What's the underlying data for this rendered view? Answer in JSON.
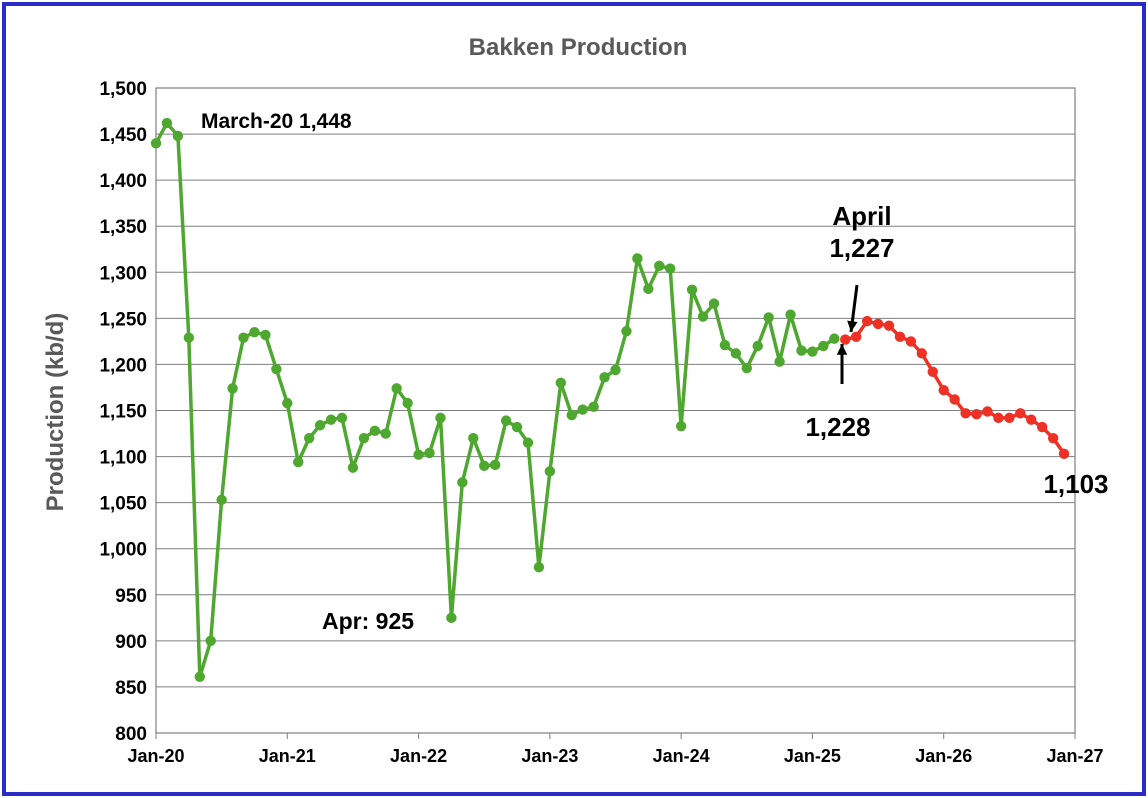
{
  "chart_data": {
    "type": "line",
    "title": "Bakken Production",
    "xlabel": "",
    "ylabel": "Production (kb/d)",
    "ylim": [
      800,
      1500
    ],
    "y_ticks": [
      "800",
      "850",
      "900",
      "950",
      "1,000",
      "1,050",
      "1,100",
      "1,150",
      "1,200",
      "1,250",
      "1,300",
      "1,350",
      "1,400",
      "1,450",
      "1,500"
    ],
    "x_ticks": [
      "Jan-20",
      "Jan-21",
      "Jan-22",
      "Jan-23",
      "Jan-24",
      "Jan-25",
      "Jan-26",
      "Jan-27"
    ],
    "grid": true,
    "colors": {
      "actual": "#4ea72e",
      "forecast": "#ee3124",
      "frame": "#2b2bc8"
    },
    "series": [
      {
        "start": "2020-01",
        "values": [
          1440,
          1462,
          1448,
          1229,
          861,
          900,
          1053,
          1174,
          1229,
          1235,
          1232,
          1195,
          1158,
          1094,
          1120,
          1134,
          1140,
          1142,
          1088,
          1120,
          1128,
          1125,
          1174,
          1158,
          1102,
          1104,
          1142,
          925,
          1072,
          1120,
          1090,
          1091,
          1139,
          1132,
          1115,
          980,
          1084,
          1180,
          1145,
          1151,
          1154,
          1186,
          1194,
          1236,
          1315,
          1282,
          1307,
          1304,
          1133,
          1281,
          1252,
          1266,
          1221,
          1212,
          1196,
          1220,
          1251,
          1203,
          1254,
          1215,
          1214,
          1220,
          1228
        ]
      },
      {
        "start": "2025-04",
        "values": [
          1227,
          1230,
          1247,
          1244,
          1242,
          1230,
          1225,
          1212,
          1192,
          1172,
          1162,
          1147,
          1146,
          1149,
          1142,
          1142,
          1147,
          1140,
          1132,
          1120,
          1103
        ]
      }
    ],
    "annotations": [
      {
        "id": "peak",
        "text": "March-20 1,448"
      },
      {
        "id": "low",
        "text": "Apr: 925"
      },
      {
        "id": "april_line1",
        "text": "April"
      },
      {
        "id": "april_line2",
        "text": "1,227"
      },
      {
        "id": "last_actual",
        "text": "1,228"
      },
      {
        "id": "end",
        "text": "1,103"
      }
    ]
  }
}
